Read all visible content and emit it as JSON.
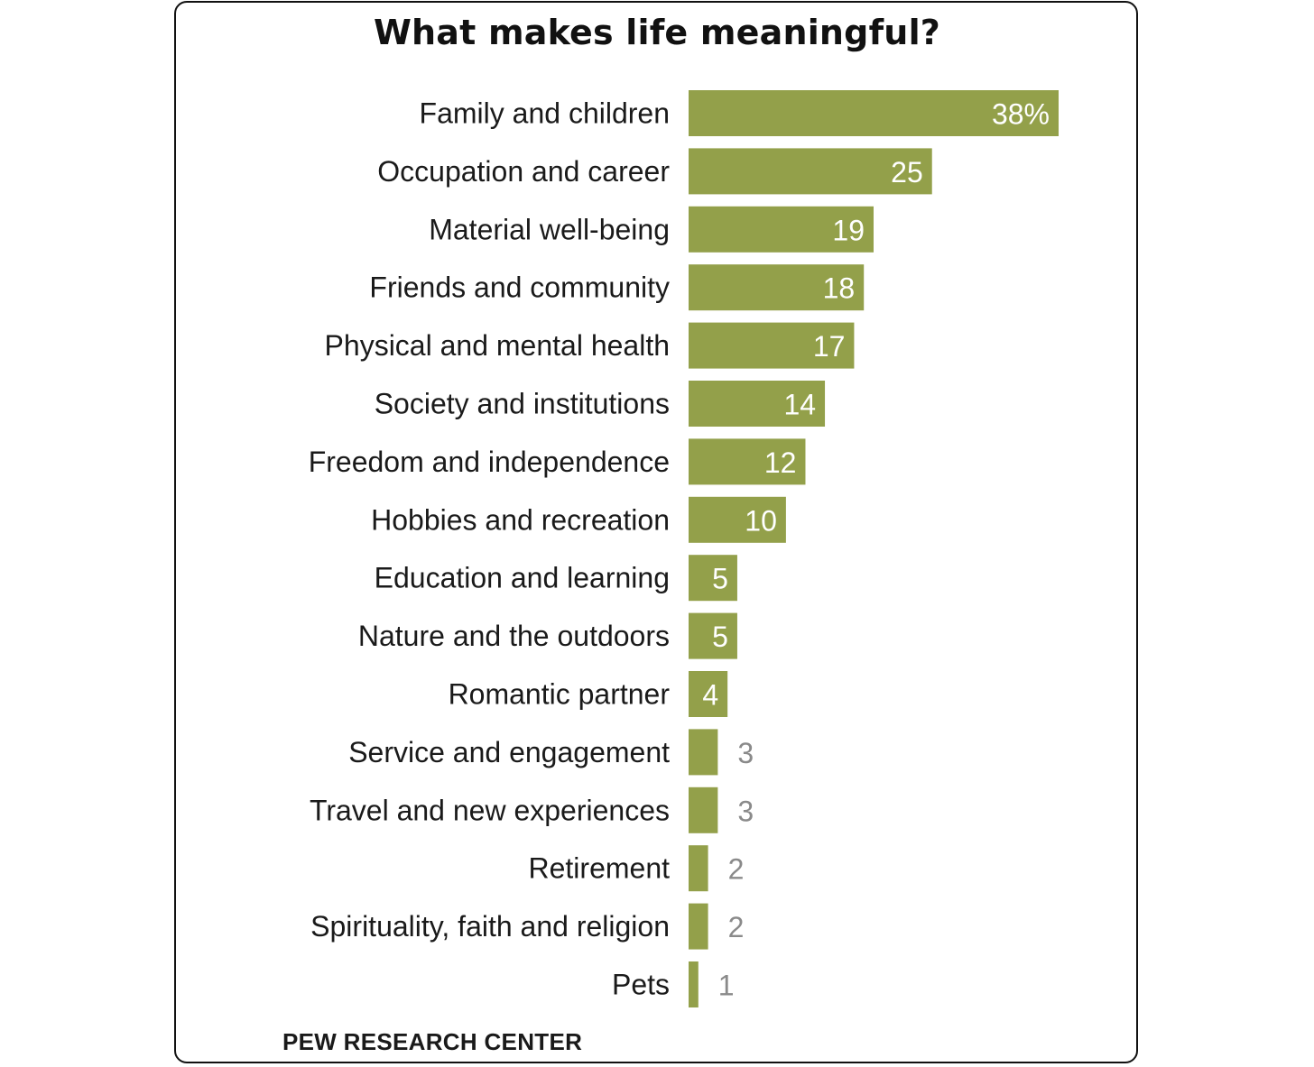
{
  "chart_data": {
    "type": "bar",
    "orientation": "horizontal",
    "title": "What makes life meaningful?",
    "categories": [
      "Family and children",
      "Occupation and career",
      "Material well-being",
      "Friends and community",
      "Physical and mental health",
      "Society and institutions",
      "Freedom and independence",
      "Hobbies and recreation",
      "Education and learning",
      "Nature and the outdoors",
      "Romantic partner",
      "Service and engagement",
      "Travel and new experiences",
      "Retirement",
      "Spirituality, faith and religion",
      "Pets"
    ],
    "values": [
      38,
      25,
      19,
      18,
      17,
      14,
      12,
      10,
      5,
      5,
      4,
      3,
      3,
      2,
      2,
      1
    ],
    "value_labels": [
      "38%",
      "25",
      "19",
      "18",
      "17",
      "14",
      "12",
      "10",
      "5",
      "5",
      "4",
      "3",
      "3",
      "2",
      "2",
      "1"
    ],
    "xlim": [
      0,
      38
    ],
    "grid": false,
    "legend": "none",
    "colors": {
      "bar": "#93a04a",
      "label_inside": "#ffffff",
      "label_outside": "#8a8a8a"
    }
  },
  "footer": {
    "source": "PEW RESEARCH CENTER"
  }
}
